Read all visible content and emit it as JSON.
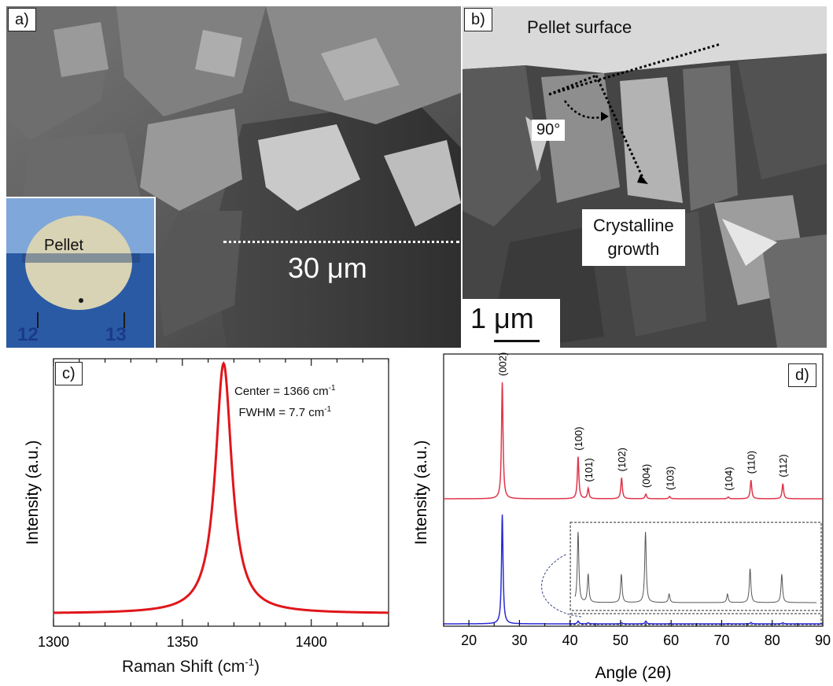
{
  "panel_a": {
    "label": "a)",
    "inset_label": "Pellet",
    "ruler_left": "12",
    "ruler_right": "13",
    "scale_text": "30 μm"
  },
  "panel_b": {
    "label": "b)",
    "surface_label": "Pellet surface",
    "angle_label": "90°",
    "growth_label_line1": "Crystalline",
    "growth_label_line2": "growth",
    "scale_text": "1 μm"
  },
  "panel_c": {
    "label": "c)",
    "annotation_center": "Center = 1366 cm",
    "annotation_center_sup": "-1",
    "annotation_fwhm": "FWHM = 7.7 cm",
    "annotation_fwhm_sup": "-1",
    "xlabel": "Raman Shift (cm",
    "xlabel_sup": "-1",
    "xlabel_end": ")",
    "ylabel": "Intensity (a.u.)",
    "line_color": "#e0161b"
  },
  "panel_d": {
    "label": "d)",
    "xlabel": "Angle (2θ)",
    "ylabel": "Intensity (a.u.)",
    "top_color": "#e0364a",
    "bottom_color": "#2a2ad6",
    "inset_color": "#555555"
  },
  "chart_data": [
    {
      "type": "line",
      "panel": "c",
      "xlabel": "Raman Shift (cm-1)",
      "ylabel": "Intensity (a.u.)",
      "xlim": [
        1300,
        1430
      ],
      "xticks": [
        1300,
        1350,
        1400
      ],
      "annotations": [
        "Center = 1366 cm-1",
        "FWHM = 7.7 cm-1"
      ],
      "series": [
        {
          "model": "lorentzian",
          "center": 1366,
          "fwhm": 7.7,
          "baseline": 0.0
        }
      ]
    },
    {
      "type": "line",
      "panel": "d",
      "xlabel": "Angle (2θ)",
      "ylabel": "Intensity (a.u.)",
      "xlim": [
        15,
        90
      ],
      "xticks": [
        20,
        30,
        40,
        50,
        60,
        70,
        80,
        90
      ],
      "peaks": [
        {
          "x": 26.6,
          "label": "(002)",
          "top": 1.0,
          "bottom": 1.0
        },
        {
          "x": 41.6,
          "label": "(100)",
          "top": 0.36,
          "bottom": 0.025
        },
        {
          "x": 43.6,
          "label": "(101)",
          "top": 0.09,
          "bottom": 0.01
        },
        {
          "x": 50.2,
          "label": "(102)",
          "top": 0.18,
          "bottom": 0.01
        },
        {
          "x": 55.0,
          "label": "(004)",
          "top": 0.04,
          "bottom": 0.025
        },
        {
          "x": 59.7,
          "label": "(103)",
          "top": 0.02,
          "bottom": 0.003
        },
        {
          "x": 71.3,
          "label": "(104)",
          "top": 0.015,
          "bottom": 0.003
        },
        {
          "x": 75.8,
          "label": "(110)",
          "top": 0.16,
          "bottom": 0.012
        },
        {
          "x": 82.1,
          "label": "(112)",
          "top": 0.13,
          "bottom": 0.01
        }
      ],
      "inset_range": [
        41,
        89
      ]
    }
  ]
}
